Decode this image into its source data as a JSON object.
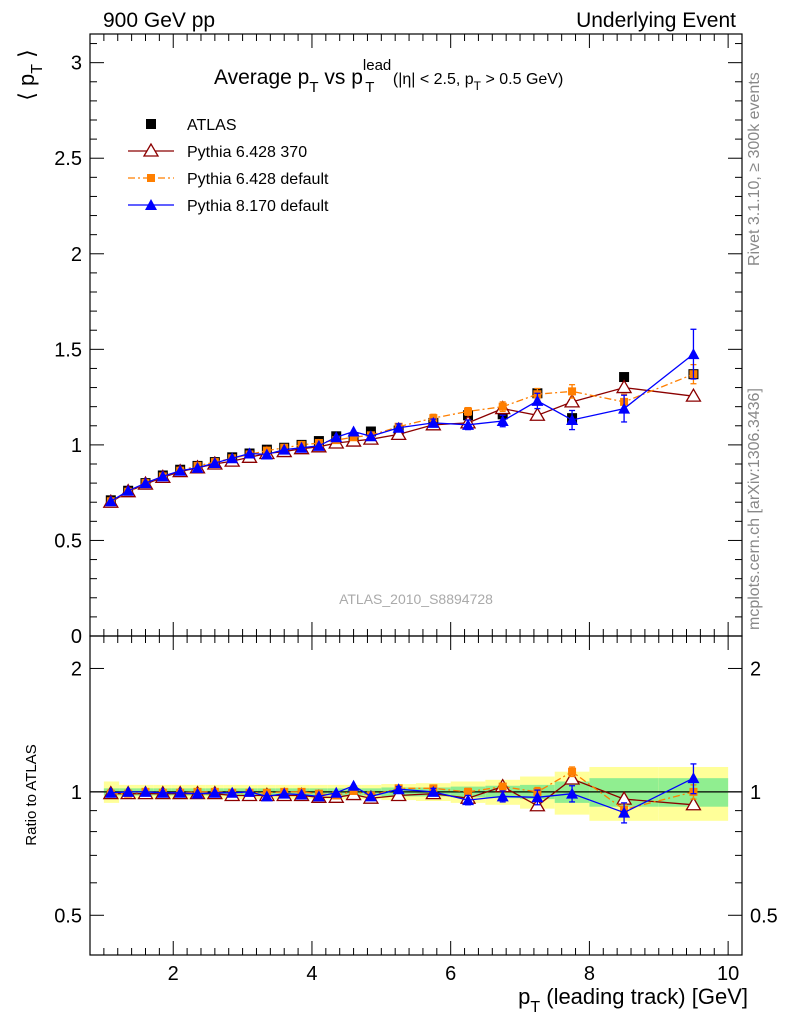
{
  "header": {
    "left": "900 GeV pp",
    "right": "Underlying Event"
  },
  "side_labels": {
    "rivet": "Rivet 3.1.10, ≥ 300k events",
    "mcplots": "mcplots.cern.ch [arXiv:1306.3436]"
  },
  "watermark": "ATLAS_2010_S8894728",
  "colors": {
    "atlas": "#000000",
    "p6_370": "#8b0000",
    "p6_default": "#ff7f00",
    "p8_default": "#0000ff",
    "band_inner": "#90ee90",
    "band_outer": "#ffff99",
    "side_text": "#888888"
  },
  "chart_data": [
    {
      "type": "scatter",
      "panel": "main",
      "title_parts": {
        "base": "Average p",
        "sub1": "T",
        "mid": " vs p",
        "sup2": "lead",
        "sub2": "T",
        "cut": "(|η| < 2.5, p",
        "cut_sub": "T",
        "cut_end": " > 0.5 GeV)"
      },
      "ylabel": "⟨ p_T ⟩",
      "xlim": [
        0.8,
        10.2
      ],
      "ylim": [
        0,
        3.15
      ],
      "yticks": [
        0,
        0.5,
        1,
        1.5,
        2,
        2.5,
        3
      ],
      "ytick_labels": [
        "0",
        "0.5",
        "1",
        "1.5",
        "2",
        "2.5",
        "3"
      ],
      "legend_position": "top-left",
      "x": [
        1.1,
        1.35,
        1.6,
        1.85,
        2.1,
        2.35,
        2.6,
        2.85,
        3.1,
        3.35,
        3.6,
        3.85,
        4.1,
        4.35,
        4.6,
        4.85,
        5.25,
        5.75,
        6.25,
        6.75,
        7.25,
        7.75,
        8.5,
        9.5
      ],
      "series": [
        {
          "name": "ATLAS",
          "marker": "filled-square",
          "color": "#000000",
          "values": [
            0.71,
            0.76,
            0.8,
            0.84,
            0.87,
            0.89,
            0.91,
            0.935,
            0.955,
            0.975,
            0.985,
            1.0,
            1.02,
            1.045,
            1.035,
            1.07,
            1.075,
            1.115,
            1.155,
            1.16,
            1.27,
            1.14,
            1.355,
            1.37
          ]
        },
        {
          "name": "Pythia 6.428 370",
          "marker": "open-triangle",
          "color": "#8b0000",
          "line": "solid",
          "values": [
            0.7,
            0.755,
            0.795,
            0.83,
            0.86,
            0.88,
            0.9,
            0.915,
            0.935,
            0.955,
            0.965,
            0.98,
            0.99,
            1.01,
            1.02,
            1.03,
            1.055,
            1.105,
            1.115,
            1.19,
            1.155,
            1.225,
            1.3,
            1.255
          ]
        },
        {
          "name": "Pythia 6.428 default",
          "marker": "filled-square-small",
          "color": "#ff7f00",
          "line": "dashdot",
          "values": [
            0.705,
            0.755,
            0.8,
            0.835,
            0.865,
            0.89,
            0.91,
            0.93,
            0.95,
            0.97,
            0.985,
            1.0,
            1.01,
            1.025,
            1.04,
            1.05,
            1.095,
            1.14,
            1.175,
            1.2,
            1.265,
            1.28,
            1.225,
            1.37
          ],
          "errors": [
            0,
            0,
            0,
            0,
            0,
            0,
            0,
            0,
            0,
            0,
            0,
            0,
            0,
            0,
            0,
            0,
            0,
            0.02,
            0.02,
            0.025,
            0.03,
            0.035,
            0.04,
            0.05
          ]
        },
        {
          "name": "Pythia 8.170 default",
          "marker": "filled-triangle",
          "color": "#0000ff",
          "line": "solid",
          "values": [
            0.705,
            0.76,
            0.8,
            0.835,
            0.865,
            0.88,
            0.905,
            0.93,
            0.955,
            0.95,
            0.975,
            0.985,
            0.995,
            1.04,
            1.07,
            1.045,
            1.09,
            1.115,
            1.105,
            1.125,
            1.23,
            1.13,
            1.19,
            1.475
          ],
          "errors": [
            0,
            0,
            0,
            0,
            0,
            0,
            0,
            0,
            0,
            0,
            0,
            0,
            0,
            0,
            0,
            0,
            0.02,
            0.02,
            0.025,
            0.03,
            0.04,
            0.05,
            0.07,
            0.13
          ]
        }
      ]
    },
    {
      "type": "scatter",
      "panel": "ratio",
      "ylabel": "Ratio to ATLAS",
      "xlabel_parts": {
        "base": "p",
        "sub": "T",
        "rest": " (leading track) [GeV]"
      },
      "xlim": [
        0.8,
        10.2
      ],
      "xticks": [
        2,
        4,
        6,
        8,
        10
      ],
      "xtick_labels": [
        "2",
        "4",
        "6",
        "8",
        "10"
      ],
      "yscale": "log",
      "ylim": [
        0.4,
        2.4
      ],
      "yticks": [
        0.5,
        1,
        2
      ],
      "ytick_labels": [
        "0.5",
        "1",
        "2"
      ],
      "reference": 1,
      "band_edges": [
        1.0,
        1.22,
        1.47,
        1.72,
        1.97,
        2.22,
        2.47,
        2.72,
        2.97,
        3.22,
        3.47,
        3.72,
        3.97,
        4.22,
        4.47,
        4.72,
        5.0,
        5.5,
        6.0,
        6.5,
        7.0,
        7.5,
        8.0,
        9.0,
        10.0
      ],
      "band_inner": [
        0.02,
        0.02,
        0.02,
        0.02,
        0.02,
        0.02,
        0.02,
        0.02,
        0.02,
        0.02,
        0.02,
        0.02,
        0.02,
        0.02,
        0.02,
        0.02,
        0.025,
        0.025,
        0.03,
        0.035,
        0.04,
        0.06,
        0.08,
        0.08
      ],
      "band_outer": [
        0.06,
        0.04,
        0.04,
        0.04,
        0.04,
        0.04,
        0.04,
        0.04,
        0.04,
        0.04,
        0.04,
        0.04,
        0.04,
        0.04,
        0.04,
        0.04,
        0.045,
        0.05,
        0.06,
        0.07,
        0.09,
        0.12,
        0.15,
        0.15
      ],
      "x": [
        1.1,
        1.35,
        1.6,
        1.85,
        2.1,
        2.35,
        2.6,
        2.85,
        3.1,
        3.35,
        3.6,
        3.85,
        4.1,
        4.35,
        4.6,
        4.85,
        5.25,
        5.75,
        6.25,
        6.75,
        7.25,
        7.75,
        8.5,
        9.5
      ],
      "series": [
        {
          "name": "Pythia 6.428 370",
          "marker": "open-triangle",
          "color": "#8b0000",
          "line": "solid",
          "values": [
            0.99,
            0.99,
            0.99,
            0.99,
            0.99,
            0.99,
            0.99,
            0.98,
            0.98,
            0.98,
            0.98,
            0.98,
            0.97,
            0.97,
            0.985,
            0.965,
            0.98,
            0.99,
            0.965,
            1.03,
            0.925,
            1.075,
            0.96,
            0.93
          ]
        },
        {
          "name": "Pythia 6.428 default",
          "marker": "filled-square-small",
          "color": "#ff7f00",
          "line": "dashdot",
          "values": [
            0.99,
            0.99,
            1.0,
            0.995,
            0.995,
            1.0,
            1.0,
            0.995,
            0.995,
            0.995,
            1.0,
            1.0,
            0.99,
            0.98,
            1.005,
            0.98,
            1.02,
            1.02,
            1.0,
            1.03,
            1.0,
            1.12,
            0.905,
            1.0
          ],
          "errors": [
            0,
            0,
            0,
            0,
            0,
            0,
            0,
            0,
            0,
            0,
            0,
            0,
            0,
            0,
            0,
            0,
            0,
            0.015,
            0.02,
            0.02,
            0.025,
            0.03,
            0.03,
            0.04
          ]
        },
        {
          "name": "Pythia 8.170 default",
          "marker": "filled-triangle",
          "color": "#0000ff",
          "line": "solid",
          "values": [
            0.995,
            1.0,
            1.0,
            0.995,
            0.995,
            0.99,
            0.995,
            0.995,
            1.0,
            0.975,
            0.99,
            0.985,
            0.975,
            0.995,
            1.035,
            0.975,
            1.015,
            1.0,
            0.955,
            0.975,
            0.97,
            0.99,
            0.89,
            1.08
          ],
          "errors": [
            0,
            0,
            0,
            0,
            0,
            0,
            0,
            0,
            0,
            0,
            0,
            0,
            0,
            0,
            0,
            0,
            0.015,
            0.02,
            0.025,
            0.03,
            0.04,
            0.045,
            0.05,
            0.09
          ]
        }
      ]
    }
  ]
}
